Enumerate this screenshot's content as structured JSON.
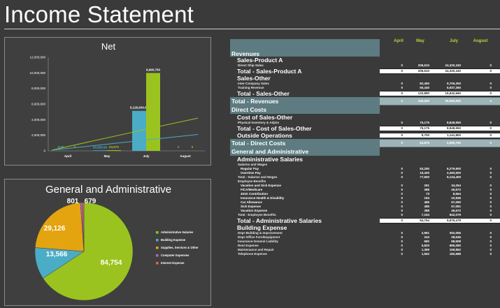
{
  "page": {
    "title": "Income Statement"
  },
  "net_chart": {
    "chart_data": {
      "type": "bar",
      "title": "Net",
      "categories": [
        "April",
        "May",
        "July",
        "August"
      ],
      "ylim": [
        0,
        12000000
      ],
      "yticks": [
        "0",
        "2,000,000",
        "4,000,000",
        "6,000,000",
        "8,000,000",
        "10,000,000",
        "12,000,000"
      ],
      "series": [
        {
          "values": [
            0,
            63555,
            5126930,
            0
          ],
          "labels": [
            "0.00",
            "63,555.00",
            "5,126,930.00",
            "0"
          ],
          "color": "#4bacc6"
        },
        {
          "values": [
            0,
            84875,
            9990750,
            0
          ],
          "labels": [
            "0",
            "84,875",
            "9,990,750",
            "0"
          ],
          "color": "#9bc31f"
        }
      ]
    }
  },
  "ga_chart": {
    "chart_data": {
      "type": "pie",
      "title": "General and Administrative",
      "labels": [
        "Administrative Salaries",
        "Building Expense",
        "Supplies, Services & Other",
        "Computer Expenses",
        "Interest Expense"
      ],
      "values": [
        84754,
        13566,
        29126,
        801,
        679
      ],
      "value_labels": [
        "84,754",
        "13,566",
        "29,126",
        "801",
        "679"
      ],
      "colors": [
        "#9bc31f",
        "#4bacc6",
        "#e4a40f",
        "#a86bc7",
        "#e5654f"
      ],
      "legend": "right"
    }
  },
  "table": {
    "months": [
      "April",
      "May",
      "July",
      "August"
    ],
    "rows": [
      {
        "kind": "sec-bar",
        "label": "Revenues",
        "vals": [
          "",
          "",
          "",
          ""
        ]
      },
      {
        "kind": "sub",
        "label": "Sales-Product A",
        "vals": [
          "",
          "",
          "",
          ""
        ]
      },
      {
        "kind": "item",
        "label": "Direct Ship Sales",
        "vals": [
          "0",
          "206,610",
          "24,320,340",
          "0"
        ]
      },
      {
        "kind": "total",
        "label": "Total - Sales-Product A",
        "vals": [
          "0",
          "206,610",
          "24,320,340",
          "0"
        ]
      },
      {
        "kind": "sub",
        "label": "Sales-Other",
        "vals": [
          "",
          "",
          "",
          ""
        ]
      },
      {
        "kind": "item",
        "label": "Inter-Company Sales",
        "vals": [
          "0",
          "82,450",
          "9,705,300",
          "0"
        ]
      },
      {
        "kind": "item",
        "label": "Training Revenue",
        "vals": [
          "0",
          "50,440",
          "5,937,360",
          "0"
        ]
      },
      {
        "kind": "total",
        "label": "Total - Sales-Other",
        "vals": [
          "0",
          "132,890",
          "15,642,660",
          "0"
        ]
      },
      {
        "kind": "sec-total",
        "label": "Total - Revenues",
        "vals": [
          "0",
          "339,500",
          "39,963,000",
          "0"
        ]
      },
      {
        "kind": "sec-bar",
        "label": "Direct Costs",
        "vals": [
          "",
          "",
          "",
          ""
        ]
      },
      {
        "kind": "sub",
        "label": "Cost of Sales-Other",
        "vals": [
          "",
          "",
          "",
          ""
        ]
      },
      {
        "kind": "item",
        "label": "Physical Inventory &  Adjsts",
        "vals": [
          "0",
          "75,175",
          "8,848,950",
          "0"
        ]
      },
      {
        "kind": "total",
        "label": "Total - Cost of Sales-Other",
        "vals": [
          "0",
          "75,175",
          "8,848,950",
          "0"
        ]
      },
      {
        "kind": "total",
        "label": "Outside Operations",
        "vals": [
          "0",
          "9,700",
          "1,141,800",
          "0"
        ]
      },
      {
        "kind": "sec-total",
        "label": "Total - Direct Costs",
        "vals": [
          "0",
          "84,875",
          "9,990,750",
          "0"
        ]
      },
      {
        "kind": "sec-bar",
        "label": "General and Administrative",
        "vals": [
          "",
          "",
          "",
          ""
        ]
      },
      {
        "kind": "sub",
        "label": "Administrative Salaries",
        "vals": [
          "",
          "",
          "",
          ""
        ]
      },
      {
        "kind": "item",
        "label": "Salaries and Wages",
        "vals": [
          "",
          "",
          "",
          ""
        ]
      },
      {
        "kind": "item2",
        "label": "Regular Pay",
        "vals": [
          "0",
          "53,250",
          "6,279,900",
          "0"
        ]
      },
      {
        "kind": "item2",
        "label": "Overtime Pay",
        "vals": [
          "0",
          "19,400",
          "2,283,600",
          "0"
        ]
      },
      {
        "kind": "item3",
        "label": "Total - Salaries and Wages",
        "vals": [
          "0",
          "77,600",
          "9,134,400",
          "0"
        ]
      },
      {
        "kind": "item",
        "label": "Employee Benefits",
        "vals": [
          "",
          "",
          "",
          ""
        ]
      },
      {
        "kind": "item2",
        "label": "Vacation and Sick Expense",
        "vals": [
          "0",
          "291",
          "34,254",
          "0"
        ]
      },
      {
        "kind": "item2",
        "label": "FICA/Medicare",
        "vals": [
          "0",
          "388",
          "45,672",
          "0"
        ]
      },
      {
        "kind": "item2",
        "label": "401K Contribution",
        "vals": [
          "0",
          "73",
          "8,564",
          "0"
        ]
      },
      {
        "kind": "item2",
        "label": "Insurance-Health & Disability",
        "vals": [
          "0",
          "194",
          "22,836",
          "0"
        ]
      },
      {
        "kind": "item2",
        "label": "Car Allowance",
        "vals": [
          "0",
          "485",
          "57,090",
          "0"
        ]
      },
      {
        "kind": "item2",
        "label": "Sick Expense",
        "vals": [
          "0",
          "485",
          "57,091",
          "0"
        ]
      },
      {
        "kind": "item2",
        "label": "Vacation Expense",
        "vals": [
          "0",
          "388",
          "45,672",
          "0"
        ]
      },
      {
        "kind": "item3",
        "label": "Total - Employee Benefits",
        "vals": [
          "0",
          "7,154",
          "842,079",
          "0"
        ]
      },
      {
        "kind": "total",
        "label": "Total - Administrative Salaries",
        "vals": [
          "0",
          "84,754",
          "9,976,479",
          "0"
        ]
      },
      {
        "kind": "sub",
        "label": "Building Expense",
        "vals": [
          "",
          "",
          "",
          ""
        ]
      },
      {
        "kind": "item",
        "label": "Depr-Building & Improvement",
        "vals": [
          "0",
          "2,991",
          "352,055",
          "0"
        ]
      },
      {
        "kind": "item",
        "label": "Depr-Office Furn/Equipment",
        "vals": [
          "0",
          "243",
          "28,545",
          "0"
        ]
      },
      {
        "kind": "item",
        "label": "Insurance-General Liability",
        "vals": [
          "0",
          "582",
          "68,508",
          "0"
        ]
      },
      {
        "kind": "item",
        "label": "Rent Expense",
        "vals": [
          "0",
          "5,820",
          "685,080",
          "0"
        ]
      },
      {
        "kind": "item",
        "label": "Maintenance and Repair",
        "vals": [
          "0",
          "1,359",
          "159,852",
          "0"
        ]
      },
      {
        "kind": "item",
        "label": "Telephone Expense",
        "vals": [
          "0",
          "1,552",
          "182,688",
          "0"
        ]
      }
    ]
  }
}
